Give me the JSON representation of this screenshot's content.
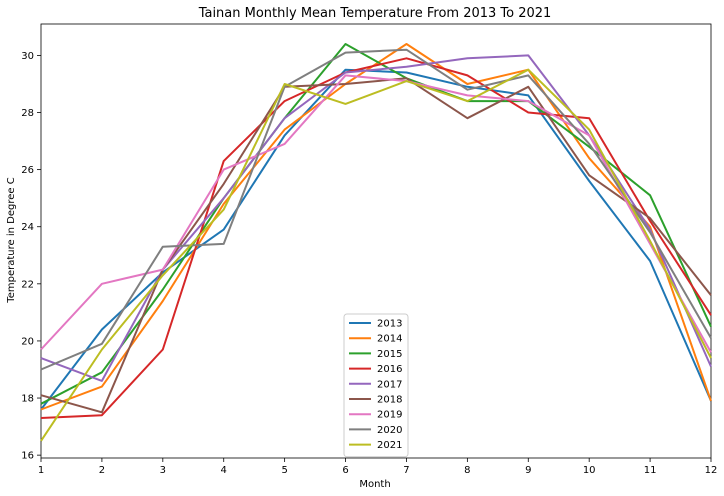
{
  "chart_data": {
    "type": "line",
    "title": "Tainan Monthly Mean Temperature From 2013 To 2021",
    "xlabel": "Month",
    "ylabel": "Temperature in Degree C",
    "x": [
      1,
      2,
      3,
      4,
      5,
      6,
      7,
      8,
      9,
      10,
      11,
      12
    ],
    "xlim": [
      1,
      12
    ],
    "ylim": [
      15.9,
      31.1
    ],
    "xticks": [
      1,
      2,
      3,
      4,
      5,
      6,
      7,
      8,
      9,
      10,
      11,
      12
    ],
    "yticks": [
      16,
      18,
      20,
      22,
      24,
      26,
      28,
      30
    ],
    "grid": false,
    "legend_position": "bottom-center",
    "series": [
      {
        "name": "2013",
        "color": "#1f77b4",
        "values": [
          17.6,
          20.4,
          22.4,
          23.9,
          27.2,
          29.5,
          29.4,
          28.9,
          28.6,
          25.6,
          22.8,
          17.9
        ]
      },
      {
        "name": "2014",
        "color": "#ff7f0e",
        "values": [
          17.6,
          18.4,
          21.4,
          24.8,
          27.4,
          29.0,
          30.4,
          29.0,
          29.5,
          26.4,
          24.0,
          17.9
        ]
      },
      {
        "name": "2015",
        "color": "#2ca02c",
        "values": [
          17.8,
          18.9,
          21.8,
          25.0,
          27.8,
          30.4,
          29.2,
          28.4,
          28.4,
          26.8,
          25.1,
          20.5
        ]
      },
      {
        "name": "2016",
        "color": "#d62728",
        "values": [
          17.3,
          17.4,
          19.7,
          26.3,
          28.4,
          29.4,
          29.9,
          29.3,
          28.0,
          27.8,
          24.2,
          20.9
        ]
      },
      {
        "name": "2017",
        "color": "#9467bd",
        "values": [
          19.4,
          18.6,
          22.5,
          25.0,
          27.8,
          29.4,
          29.6,
          29.9,
          30.0,
          27.2,
          23.9,
          19.1
        ]
      },
      {
        "name": "2018",
        "color": "#8c564b",
        "values": [
          18.1,
          17.5,
          22.5,
          25.5,
          28.9,
          29.0,
          29.2,
          27.8,
          28.9,
          25.8,
          24.3,
          21.6
        ]
      },
      {
        "name": "2019",
        "color": "#e377c2",
        "values": [
          19.7,
          22.0,
          22.5,
          26.0,
          26.9,
          29.3,
          29.1,
          28.6,
          28.4,
          27.2,
          23.4,
          19.6
        ]
      },
      {
        "name": "2020",
        "color": "#7f7f7f",
        "values": [
          19.0,
          19.9,
          23.3,
          23.4,
          28.9,
          30.1,
          30.2,
          28.8,
          29.3,
          26.9,
          23.8,
          20.1
        ]
      },
      {
        "name": "2021",
        "color": "#bcbd22",
        "values": [
          16.5,
          19.7,
          22.3,
          24.6,
          29.0,
          28.3,
          29.1,
          28.4,
          29.5,
          27.4,
          23.5,
          19.4
        ]
      }
    ]
  }
}
